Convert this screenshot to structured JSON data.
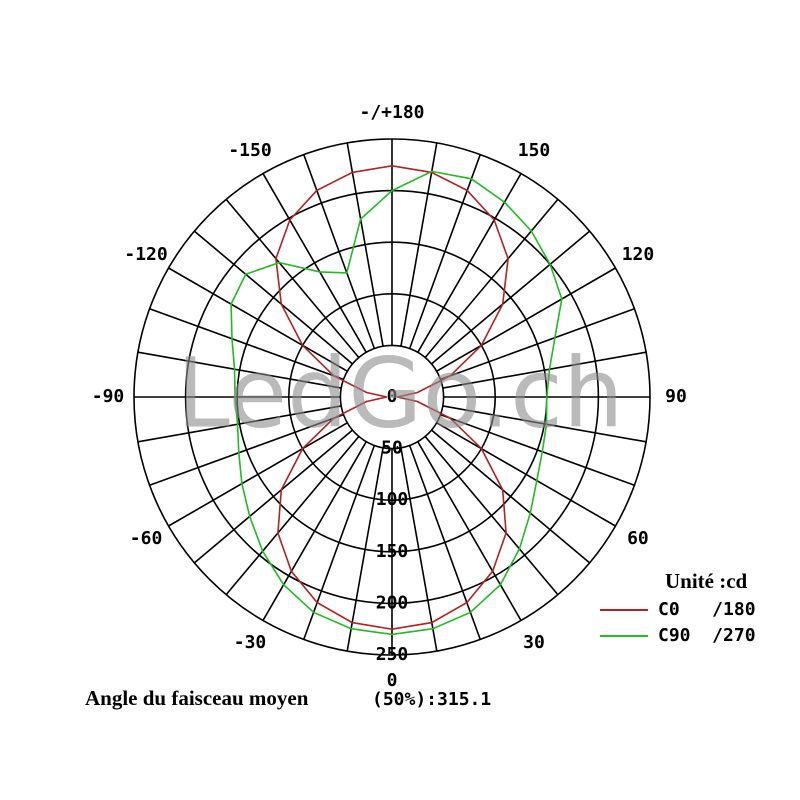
{
  "chart_data": {
    "type": "polar",
    "watermark": "LedGo.ch",
    "legend_title": "Unité :cd",
    "footer": {
      "label": "Angle du faisceau moyen",
      "value": "(50%):315.1"
    },
    "rlim": [
      0,
      250
    ],
    "rticks": [
      0,
      50,
      100,
      150,
      200,
      250
    ],
    "thetaticks": [
      0,
      30,
      60,
      90,
      120,
      150,
      {
        "value": 180,
        "label": "-/+180"
      },
      -150,
      -120,
      -90,
      -60,
      -30
    ],
    "theta": [
      -180,
      -170,
      -160,
      -150,
      -140,
      -130,
      -120,
      -110,
      -100,
      -90,
      -80,
      -70,
      -60,
      -50,
      -40,
      -30,
      -20,
      -10,
      0,
      10,
      20,
      30,
      40,
      50,
      60,
      70,
      80,
      90,
      100,
      110,
      120,
      130,
      140,
      150,
      160,
      170,
      180
    ],
    "series": [
      {
        "name": "C0   /180",
        "color": "#b22222",
        "values": [
          224,
          221,
          213,
          198,
          175,
          140,
          100,
          60,
          25,
          5,
          25,
          60,
          100,
          140,
          172,
          195,
          212,
          222,
          225,
          222,
          212,
          195,
          172,
          140,
          100,
          60,
          25,
          5,
          25,
          60,
          100,
          140,
          175,
          198,
          213,
          221,
          224
        ]
      },
      {
        "name": "C90  /270",
        "color": "#22bb22",
        "values": [
          200,
          175,
          128,
          140,
          170,
          185,
          180,
          165,
          155,
          152,
          152,
          158,
          168,
          180,
          195,
          210,
          222,
          228,
          230,
          228,
          222,
          210,
          192,
          175,
          162,
          155,
          152,
          150,
          155,
          168,
          190,
          200,
          210,
          218,
          225,
          222,
          200
        ]
      }
    ]
  }
}
